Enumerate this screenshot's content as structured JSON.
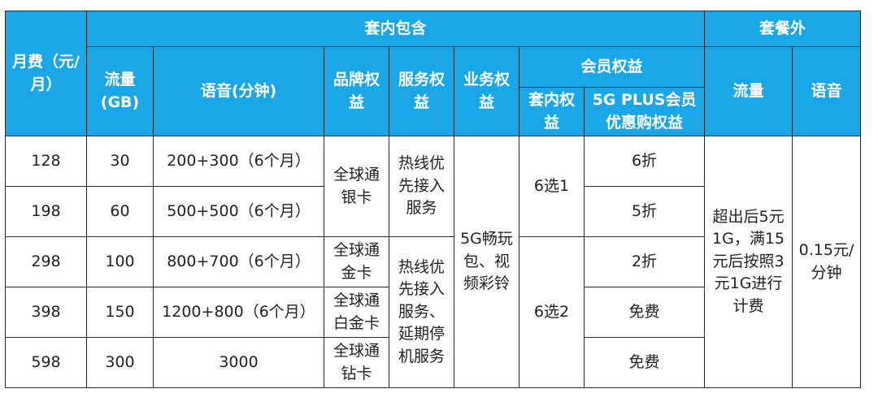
{
  "table": {
    "header": {
      "monthly_fee": "月费（元/\n月）",
      "included": "套内包含",
      "overage": "套餐外",
      "data_gb": "流量\n(GB)",
      "voice_min": "语音(分钟)",
      "brand_rights": "品牌权\n益",
      "service_rights": "服务权\n益",
      "business_rights": "业务权\n益",
      "member_rights": "会员权益",
      "in_package_rights": "套内权\n益",
      "plus_rights": "5G PLUS会员\n优惠购权益",
      "overage_data": "流量",
      "overage_voice": "语音"
    },
    "rows": [
      {
        "fee": "128",
        "data": "30",
        "voice": "200+300（6个月）",
        "discount": "6折"
      },
      {
        "fee": "198",
        "data": "60",
        "voice": "500+500（6个月）",
        "discount": "5折"
      },
      {
        "fee": "298",
        "data": "100",
        "voice": "800+700（6个月）",
        "discount": "2折"
      },
      {
        "fee": "398",
        "data": "150",
        "voice": "1200+800（6个月）",
        "discount": "免费"
      },
      {
        "fee": "598",
        "data": "300",
        "voice": "3000",
        "discount": "免费"
      }
    ],
    "brand": {
      "silver": "全球通\n银卡",
      "gold": "全球通\n金卡",
      "platinum": "全球通\n白金卡",
      "diamond": "全球通\n钻卡"
    },
    "service": {
      "basic": "热线优\n先接入\n服务",
      "extended": "热线优\n先接入\n服务、\n延期停\n机服务"
    },
    "business": "5G畅玩\n包、视\n频彩铃",
    "member_choice": {
      "low": "6选1",
      "high": "6选2"
    },
    "overage_data_text": "超出后5元\n1G，满15\n元后按照3\n元1G进行\n计费",
    "overage_voice_text": "0.15元/\n分钟"
  },
  "colors": {
    "header_bg": "#1aa7e8",
    "header_text": "#ffffff",
    "border": "#2a2a2a"
  }
}
